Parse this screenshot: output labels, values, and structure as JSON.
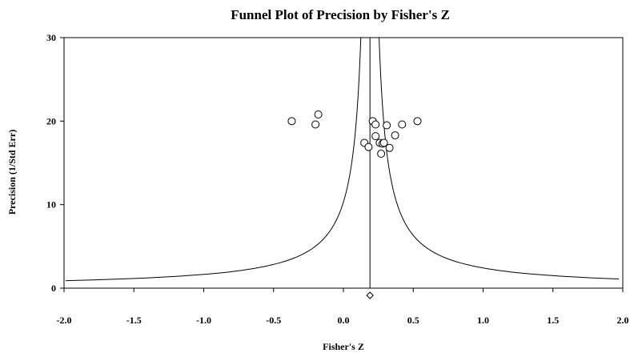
{
  "chart_data": {
    "type": "scatter",
    "title": "Funnel Plot of Precision by Fisher's Z",
    "xlabel": "Fisher's Z",
    "ylabel": "Precision (1/Std Err)",
    "xlim": [
      -2.0,
      2.0
    ],
    "ylim": [
      0,
      30
    ],
    "xticks": [
      "-2.0",
      "-1.5",
      "-1.0",
      "-0.5",
      "0.0",
      "0.5",
      "1.0",
      "1.5",
      "2.0"
    ],
    "yticks": [
      "0",
      "10",
      "20",
      "30"
    ],
    "grid": false,
    "legend": "none",
    "combined_effect": 0.19,
    "points": [
      {
        "x": -0.37,
        "y": 20.0
      },
      {
        "x": -0.2,
        "y": 19.6
      },
      {
        "x": -0.18,
        "y": 20.8
      },
      {
        "x": 0.15,
        "y": 17.4
      },
      {
        "x": 0.18,
        "y": 16.9
      },
      {
        "x": 0.21,
        "y": 20.0
      },
      {
        "x": 0.23,
        "y": 19.6
      },
      {
        "x": 0.23,
        "y": 18.2
      },
      {
        "x": 0.26,
        "y": 17.4
      },
      {
        "x": 0.27,
        "y": 16.1
      },
      {
        "x": 0.28,
        "y": 17.3
      },
      {
        "x": 0.29,
        "y": 17.4
      },
      {
        "x": 0.31,
        "y": 19.5
      },
      {
        "x": 0.33,
        "y": 16.8
      },
      {
        "x": 0.37,
        "y": 18.3
      },
      {
        "x": 0.42,
        "y": 19.6
      },
      {
        "x": 0.53,
        "y": 20.0
      }
    ],
    "summary_marker": {
      "x": 0.19
    }
  }
}
